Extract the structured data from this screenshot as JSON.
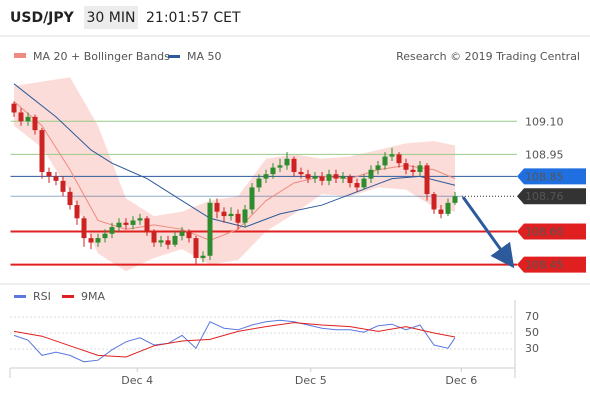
{
  "chart_data": [
    {
      "type": "candlestick",
      "symbol": "USD/JPY",
      "interval": "30 MIN",
      "time": "21:01:57 CET",
      "credit": "Research © 2019 Trading Central",
      "xlim": [
        -0.5,
        71.5
      ],
      "ylim": [
        108.38,
        109.31
      ],
      "candles": {
        "up_color": "#2e8b2e",
        "down_color": "#cc2222",
        "open": [
          109.18,
          109.14,
          109.1,
          109.12,
          109.06,
          108.87,
          108.85,
          108.83,
          108.78,
          108.72,
          108.66,
          108.57,
          108.55,
          108.57,
          108.59,
          108.62,
          108.64,
          108.63,
          108.65,
          108.66,
          108.6,
          108.55,
          108.56,
          108.54,
          108.58,
          108.6,
          108.57,
          108.48,
          108.49,
          108.73,
          108.69,
          108.67,
          108.68,
          108.64,
          108.7,
          108.8,
          108.84,
          108.86,
          108.89,
          108.9,
          108.93,
          108.87,
          108.86,
          108.84,
          108.85,
          108.83,
          108.86,
          108.84,
          108.85,
          108.82,
          108.8,
          108.84,
          108.88,
          108.9,
          108.94,
          108.95,
          108.91,
          108.88,
          108.87,
          108.9,
          108.77,
          108.7,
          108.68,
          108.73
        ],
        "high": [
          109.19,
          109.16,
          109.14,
          109.13,
          109.07,
          108.89,
          108.87,
          108.85,
          108.8,
          108.74,
          108.67,
          108.59,
          108.59,
          108.61,
          108.64,
          108.66,
          108.66,
          108.67,
          108.68,
          108.67,
          108.61,
          108.58,
          108.58,
          108.6,
          108.62,
          108.61,
          108.58,
          108.51,
          108.75,
          108.75,
          108.71,
          108.71,
          108.7,
          108.72,
          108.82,
          108.86,
          108.88,
          108.91,
          108.93,
          108.96,
          108.94,
          108.89,
          108.88,
          108.87,
          108.87,
          108.88,
          108.88,
          108.87,
          108.86,
          108.84,
          108.86,
          108.9,
          108.92,
          108.96,
          108.98,
          108.96,
          108.93,
          108.9,
          108.92,
          108.91,
          108.78,
          108.72,
          108.75,
          108.78
        ],
        "low": [
          109.12,
          109.08,
          109.08,
          109.04,
          108.84,
          108.82,
          108.81,
          108.76,
          108.7,
          108.63,
          108.53,
          108.52,
          108.53,
          108.55,
          108.57,
          108.6,
          108.61,
          108.61,
          108.63,
          108.58,
          108.53,
          108.53,
          108.52,
          108.53,
          108.56,
          108.55,
          108.45,
          108.46,
          108.47,
          108.66,
          108.64,
          108.65,
          108.61,
          108.62,
          108.68,
          108.78,
          108.82,
          108.84,
          108.87,
          108.88,
          108.85,
          108.84,
          108.82,
          108.82,
          108.81,
          108.81,
          108.82,
          108.82,
          108.8,
          108.78,
          108.79,
          108.82,
          108.86,
          108.88,
          108.92,
          108.89,
          108.86,
          108.85,
          108.85,
          108.74,
          108.68,
          108.66,
          108.67,
          108.72
        ],
        "close": [
          109.14,
          109.1,
          109.12,
          109.06,
          108.87,
          108.85,
          108.83,
          108.78,
          108.72,
          108.66,
          108.57,
          108.55,
          108.57,
          108.59,
          108.62,
          108.64,
          108.63,
          108.65,
          108.66,
          108.6,
          108.55,
          108.56,
          108.54,
          108.58,
          108.6,
          108.57,
          108.48,
          108.49,
          108.73,
          108.69,
          108.67,
          108.68,
          108.64,
          108.7,
          108.8,
          108.84,
          108.86,
          108.89,
          108.9,
          108.93,
          108.87,
          108.86,
          108.84,
          108.85,
          108.83,
          108.86,
          108.84,
          108.85,
          108.82,
          108.8,
          108.84,
          108.88,
          108.9,
          108.94,
          108.95,
          108.91,
          108.88,
          108.87,
          108.9,
          108.77,
          108.7,
          108.68,
          108.73,
          108.76
        ]
      },
      "bollinger": {
        "color": "#fcdcd8",
        "x": [
          0,
          4,
          8,
          12,
          16,
          20,
          24,
          28,
          32,
          36,
          40,
          44,
          48,
          52,
          56,
          60,
          63
        ],
        "upper": [
          109.26,
          109.28,
          109.3,
          109.08,
          108.75,
          108.67,
          108.69,
          108.74,
          108.76,
          108.93,
          108.95,
          108.93,
          108.94,
          108.97,
          109.0,
          109.01,
          108.99
        ],
        "lower": [
          109.08,
          108.98,
          108.78,
          108.5,
          108.42,
          108.48,
          108.52,
          108.45,
          108.47,
          108.6,
          108.68,
          108.77,
          108.76,
          108.8,
          108.79,
          108.71,
          108.69
        ]
      },
      "series": [
        {
          "name": "MA 20 + Bollinger Bands",
          "color": "#ee8a80",
          "x": [
            0,
            4,
            8,
            12,
            16,
            20,
            24,
            28,
            32,
            36,
            40,
            44,
            48,
            52,
            56,
            60,
            63
          ],
          "values": [
            109.19,
            109.08,
            108.88,
            108.65,
            108.61,
            108.63,
            108.61,
            108.56,
            108.61,
            108.74,
            108.82,
            108.85,
            108.84,
            108.88,
            108.9,
            108.88,
            108.84
          ]
        },
        {
          "name": "MA 50",
          "color": "#2c5a9a",
          "x": [
            0,
            6,
            11,
            14,
            19,
            24,
            28,
            33,
            38,
            44,
            49,
            54,
            58,
            63
          ],
          "values": [
            109.27,
            109.12,
            108.97,
            108.91,
            108.84,
            108.74,
            108.66,
            108.62,
            108.68,
            108.72,
            108.78,
            108.84,
            108.85,
            108.81
          ]
        }
      ],
      "levels": [
        {
          "value": 109.1,
          "label": "109.10",
          "color": "#99cc88",
          "style": "solid",
          "label_color": "#3a9a2a"
        },
        {
          "value": 108.95,
          "label": "108.95",
          "color": "#99cc88",
          "style": "solid",
          "label_color": "#3a9a2a"
        },
        {
          "value": 108.85,
          "label": "108.85",
          "color": "#2c5a9a",
          "style": "solid",
          "label_bg": "#1f6fe0"
        },
        {
          "value": 108.76,
          "label": "108.76",
          "color": "#333333",
          "style": "dotted",
          "label_bg": "#333333"
        },
        {
          "value": 108.6,
          "label": "108.60",
          "color": "#e02020",
          "style": "thick",
          "label_bg": "#e02020"
        },
        {
          "value": 108.45,
          "label": "108.45",
          "color": "#e02020",
          "style": "thick",
          "label_bg": "#e02020"
        }
      ],
      "xticks": [
        {
          "value": 17.6,
          "label": "Dec 4"
        },
        {
          "value": 42.4,
          "label": "Dec 5"
        },
        {
          "value": 63.9,
          "label": "Dec 6"
        }
      ]
    },
    {
      "type": "line",
      "xlim": [
        -0.5,
        71.5
      ],
      "ylim": [
        10,
        85
      ],
      "yticks": [
        30,
        50,
        70
      ],
      "grid": true,
      "series": [
        {
          "name": "RSI",
          "color": "#5a78e0",
          "x": [
            0,
            2,
            4,
            6,
            8,
            10,
            12,
            14,
            16,
            18,
            20,
            22,
            24,
            26,
            28,
            30,
            32,
            34,
            36,
            38,
            40,
            42,
            44,
            46,
            48,
            50,
            52,
            54,
            56,
            58,
            60,
            62,
            63
          ],
          "values": [
            47,
            41,
            22,
            26,
            22,
            14,
            16,
            29,
            39,
            44,
            35,
            37,
            47,
            31,
            64,
            56,
            54,
            60,
            64,
            66,
            64,
            60,
            56,
            54,
            54,
            51,
            59,
            61,
            54,
            60,
            35,
            31,
            44
          ]
        },
        {
          "name": "9MA",
          "color": "#e02020",
          "x": [
            0,
            4,
            8,
            12,
            16,
            20,
            24,
            28,
            32,
            36,
            40,
            44,
            48,
            52,
            56,
            60,
            63
          ],
          "values": [
            52,
            46,
            34,
            22,
            20,
            34,
            40,
            42,
            52,
            58,
            63,
            60,
            58,
            52,
            58,
            50,
            45
          ]
        }
      ]
    }
  ]
}
